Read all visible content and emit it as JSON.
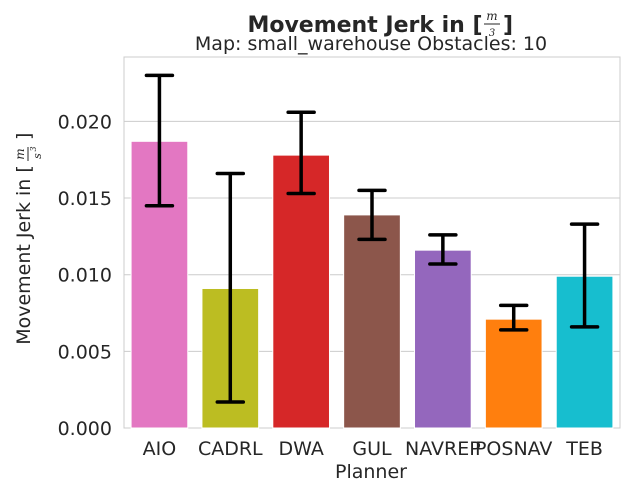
{
  "chart_data": {
    "type": "bar",
    "title_prefix": "Movement Jerk in [",
    "title_suffix": "]",
    "unit_numerator": "m",
    "unit_denominator": "s",
    "unit_exponent": "3",
    "subtitle": "Map: small_warehouse Obstacles: 10",
    "xlabel": "Planner",
    "ylabel_prefix": "Movement Jerk in [",
    "ylabel_suffix": "]",
    "categories": [
      "AIO",
      "CADRL",
      "DWA",
      "GUL",
      "NAVREP",
      "POSNAV",
      "TEB"
    ],
    "values": [
      0.0187,
      0.0091,
      0.0178,
      0.0139,
      0.0116,
      0.0071,
      0.0099
    ],
    "error_low": [
      0.0145,
      0.0017,
      0.0153,
      0.0123,
      0.0107,
      0.0064,
      0.0066
    ],
    "error_high": [
      0.023,
      0.0166,
      0.0206,
      0.0155,
      0.0126,
      0.008,
      0.0133
    ],
    "colors": [
      "#e377c2",
      "#bcbd22",
      "#d62728",
      "#8c564b",
      "#9467bd",
      "#ff7f0e",
      "#17becf"
    ],
    "yticks": [
      "0.000",
      "0.005",
      "0.010",
      "0.015",
      "0.020"
    ],
    "ytick_values": [
      0,
      0.005,
      0.01,
      0.015,
      0.02
    ],
    "ylim": [
      0,
      0.0242
    ],
    "grid": true
  }
}
